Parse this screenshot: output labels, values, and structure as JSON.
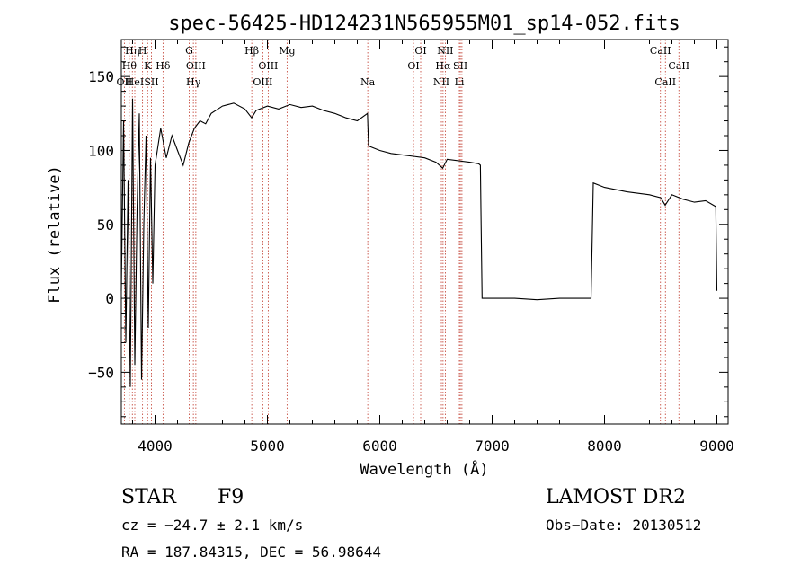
{
  "chart_data": {
    "type": "line",
    "title": "spec-56425-HD124231N565955M01_sp14-052.fits",
    "xlabel": "Wavelength (Å)",
    "ylabel": "Flux (relative)",
    "xlim": [
      3700,
      9100
    ],
    "ylim": [
      -85,
      175
    ],
    "x_ticks": [
      4000,
      5000,
      6000,
      7000,
      8000,
      9000
    ],
    "y_ticks": [
      -50,
      0,
      50,
      100,
      150
    ],
    "x_tick_labels": [
      "4000",
      "5000",
      "6000",
      "7000",
      "8000",
      "9000"
    ],
    "y_tick_labels": [
      "−50",
      "0",
      "50",
      "100",
      "150"
    ],
    "grid": false,
    "series": [
      {
        "x": [
          3700,
          3720,
          3740,
          3760,
          3780,
          3800,
          3820,
          3840,
          3860,
          3880,
          3900,
          3920,
          3940,
          3960,
          3980,
          4000,
          4050,
          4100,
          4150,
          4200,
          4250,
          4300,
          4350,
          4400,
          4450,
          4500,
          4600,
          4700,
          4800,
          4860,
          4900,
          5000,
          5100,
          5200,
          5300,
          5400,
          5500,
          5600,
          5700,
          5800,
          5890,
          5900,
          6000,
          6100,
          6200,
          6300,
          6400,
          6500,
          6560,
          6600,
          6700,
          6800,
          6880,
          6895,
          6900,
          6910,
          7000,
          7200,
          7400,
          7600,
          7800,
          7880,
          7890,
          7900,
          8000,
          8200,
          8400,
          8500,
          8540,
          8600,
          8700,
          8800,
          8900,
          8990,
          9000
        ],
        "y": [
          5,
          120,
          -30,
          80,
          -60,
          135,
          -45,
          60,
          125,
          -55,
          50,
          110,
          -20,
          95,
          10,
          90,
          115,
          95,
          110,
          100,
          90,
          105,
          115,
          120,
          118,
          125,
          130,
          132,
          128,
          122,
          127,
          130,
          128,
          131,
          129,
          130,
          127,
          125,
          122,
          120,
          125,
          103,
          100,
          98,
          97,
          96,
          95,
          92,
          88,
          94,
          93,
          92,
          91,
          90,
          60,
          0,
          0,
          0,
          -1,
          0,
          0,
          0,
          40,
          78,
          75,
          72,
          70,
          68,
          63,
          70,
          67,
          65,
          66,
          62,
          5
        ]
      }
    ],
    "line_markers": [
      {
        "x": 3727,
        "label": "OII",
        "row": 3
      },
      {
        "x": 3771,
        "label": "Hθ",
        "row": 2
      },
      {
        "x": 3798,
        "label": "Hη",
        "row": 1
      },
      {
        "x": 3820,
        "label": "HeI",
        "row": 3
      },
      {
        "x": 3889,
        "label": "H",
        "row": 1
      },
      {
        "x": 3934,
        "label": "K",
        "row": 2
      },
      {
        "x": 3968,
        "label": "SII",
        "row": 3
      },
      {
        "x": 4071,
        "label": "Hδ",
        "row": 2
      },
      {
        "x": 4304,
        "label": "G",
        "row": 1
      },
      {
        "x": 4341,
        "label": "Hγ",
        "row": 3
      },
      {
        "x": 4363,
        "label": "OIII",
        "row": 2
      },
      {
        "x": 4861,
        "label": "Hβ",
        "row": 1
      },
      {
        "x": 4959,
        "label": "OIII",
        "row": 3
      },
      {
        "x": 5007,
        "label": "OIII",
        "row": 2
      },
      {
        "x": 5175,
        "label": "Mg",
        "row": 1
      },
      {
        "x": 5893,
        "label": "Na",
        "row": 3
      },
      {
        "x": 6300,
        "label": "OI",
        "row": 2
      },
      {
        "x": 6364,
        "label": "OI",
        "row": 1
      },
      {
        "x": 6548,
        "label": "NII",
        "row": 3
      },
      {
        "x": 6563,
        "label": "Hα",
        "row": 2
      },
      {
        "x": 6583,
        "label": "NII",
        "row": 1
      },
      {
        "x": 6708,
        "label": "Li",
        "row": 3
      },
      {
        "x": 6717,
        "label": "SII",
        "row": 2
      },
      {
        "x": 6731,
        "label": "",
        "row": 0
      },
      {
        "x": 8498,
        "label": "CaII",
        "row": 1
      },
      {
        "x": 8542,
        "label": "CaII",
        "row": 3
      },
      {
        "x": 8662,
        "label": "CaII",
        "row": 2
      }
    ],
    "line_color": "#000000",
    "marker_color": "#c0392b"
  },
  "info": {
    "object_class": "STAR",
    "subclass": "F9",
    "survey": "LAMOST DR2",
    "cz": "cz = −24.7 ± 2.1 km/s",
    "obs_date": "Obs−Date: 20130512",
    "coords": "RA = 187.84315, DEC =  56.98644"
  }
}
